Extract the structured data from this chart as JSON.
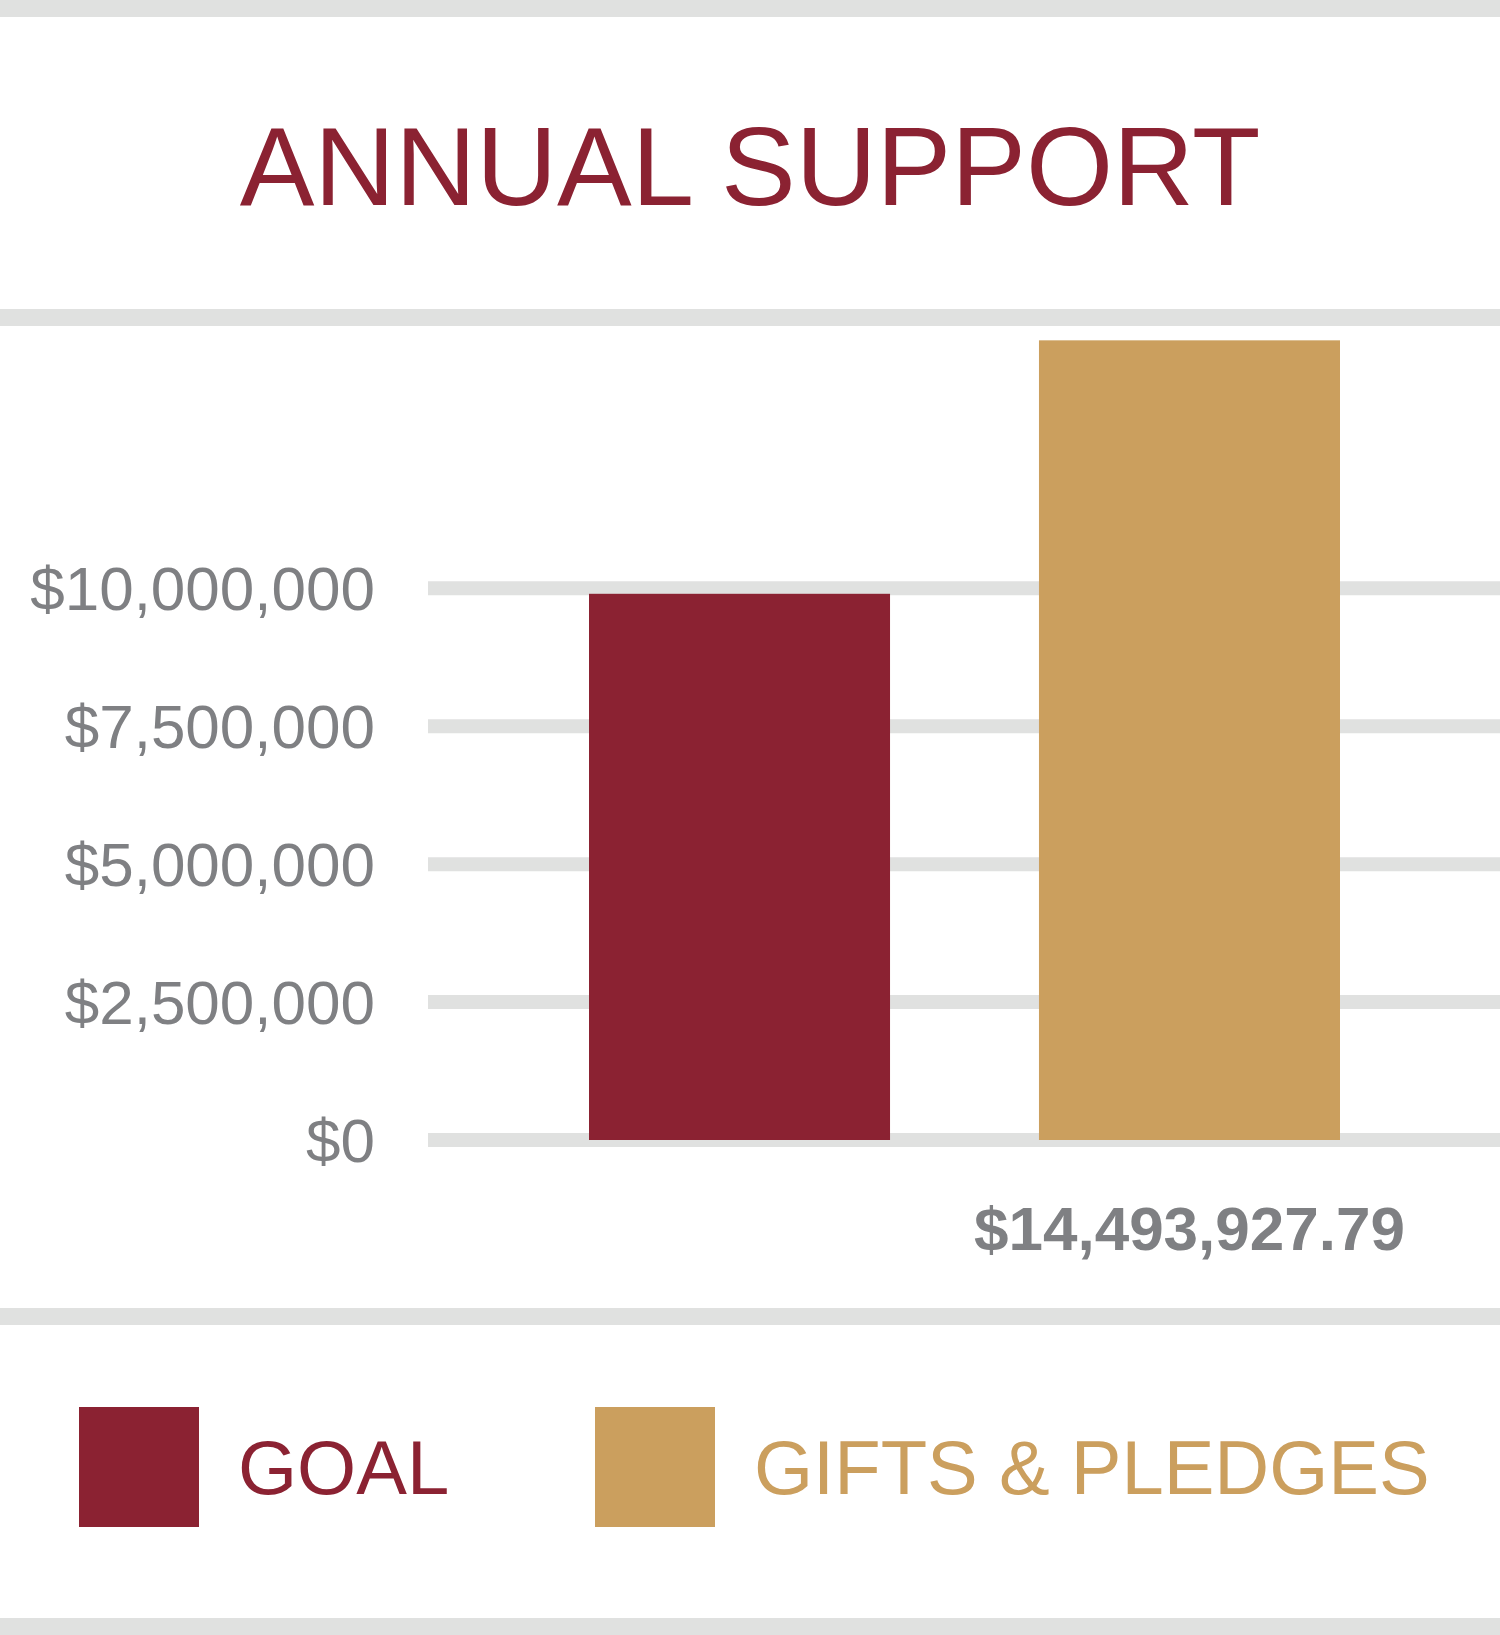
{
  "chart_data": {
    "type": "bar",
    "title": "ANNUAL SUPPORT",
    "categories": [
      null,
      null
    ],
    "series": [
      {
        "name": "GOAL",
        "color": "#8b2232",
        "values": [
          9900000,
          null
        ]
      },
      {
        "name": "GIFTS & PLEDGES",
        "color": "#cb9f5e",
        "values": [
          null,
          14493927.79
        ],
        "value_labels": [
          null,
          "$14,493,927.79"
        ]
      }
    ],
    "ylim": [
      0,
      14500000
    ],
    "yticks": [
      {
        "value": 0,
        "label": "$0"
      },
      {
        "value": 2500000,
        "label": "$2,500,000"
      },
      {
        "value": 5000000,
        "label": "$5,000,000"
      },
      {
        "value": 7500000,
        "label": "$7,500,000"
      },
      {
        "value": 10000000,
        "label": "$10,000,000"
      }
    ],
    "grid": "y",
    "legend": "bottom"
  }
}
